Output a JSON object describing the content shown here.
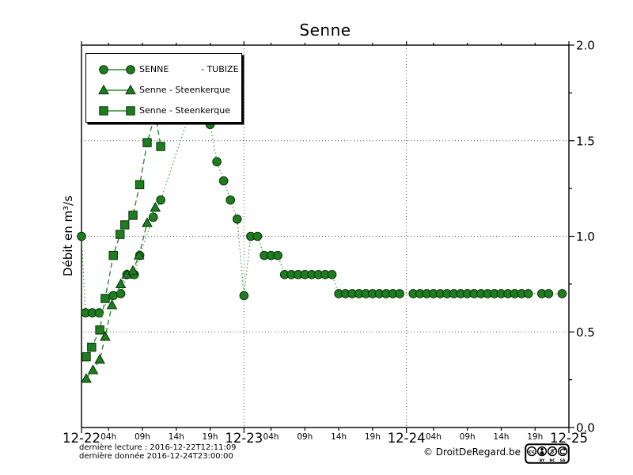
{
  "title": "Senne",
  "y_axis": {
    "label": "Débit en m³/s",
    "ticks": [
      "0.0",
      "0.5",
      "1.0",
      "1.5",
      "2.0"
    ],
    "min": 0.0,
    "max": 2.0,
    "side": "right"
  },
  "x_axis": {
    "day_labels": [
      "12-22",
      "12-23",
      "12-24",
      "12-25"
    ],
    "hour_labels": [
      "04h",
      "09h",
      "14h",
      "19h"
    ],
    "hour_offsets": [
      4,
      9,
      14,
      19
    ],
    "hours_span": 72
  },
  "legend": {
    "items": [
      {
        "marker": "circle",
        "label": "SENNE",
        "label2": "- TUBIZE"
      },
      {
        "marker": "triangle",
        "label": "Senne - Steenkerque",
        "label2": ""
      },
      {
        "marker": "square",
        "label": "Senne - Steenkerque",
        "label2": ""
      }
    ]
  },
  "footnotes": {
    "line1": "dernière lecture : 2016-12-22T12:11:09",
    "line2": "dernière donnée  2016-12-24T23:00:00"
  },
  "copyright": "© DroitDeRegard.be",
  "license_badge": {
    "logo": "cc",
    "labels": [
      "BY",
      "NC",
      "SA"
    ]
  },
  "colors": {
    "marker_fill": "#1e7d1e",
    "marker_edge": "#0a2f0a",
    "dashed_line": "#2e8b2e",
    "dotted_line": "#43a043",
    "grid": "#555555",
    "axis": "#000000"
  },
  "chart_data": {
    "type": "line",
    "title": "Senne",
    "xlabel": "",
    "ylabel": "Débit en m³/s",
    "ylim": [
      0.0,
      2.0
    ],
    "x_unit": "hours since 2016-12-22T00:00",
    "x_tick_days": [
      "12-22",
      "12-23",
      "12-24",
      "12-25"
    ],
    "grid": "dotted, y at 0.5/1.0/1.5 and x at day boundaries",
    "legend_position": "upper left",
    "series": [
      {
        "name": "SENNE - TUBIZE",
        "marker": "circle",
        "linestyle": "dotted",
        "points": [
          [
            0,
            1.0
          ],
          [
            0.6,
            0.6
          ],
          [
            1.6,
            0.6
          ],
          [
            2.6,
            0.6
          ],
          [
            4.7,
            0.69
          ],
          [
            5.8,
            0.7
          ],
          [
            6.7,
            0.8
          ],
          [
            7.8,
            0.8
          ],
          [
            8.6,
            0.9
          ],
          [
            10.6,
            1.1
          ],
          [
            11.7,
            1.19
          ],
          [
            17,
            1.75
          ],
          [
            19,
            1.585
          ],
          [
            20,
            1.39
          ],
          [
            21,
            1.29
          ],
          [
            22,
            1.19
          ],
          [
            23,
            1.09
          ],
          [
            24,
            0.69
          ],
          [
            25,
            1.0
          ],
          [
            26,
            1.0
          ],
          [
            27,
            0.9
          ],
          [
            28,
            0.9
          ],
          [
            29,
            0.9
          ],
          [
            30,
            0.8
          ],
          [
            31,
            0.8
          ],
          [
            32,
            0.8
          ],
          [
            33,
            0.8
          ],
          [
            34,
            0.8
          ],
          [
            35,
            0.8
          ],
          [
            36,
            0.8
          ],
          [
            37,
            0.8
          ],
          [
            38,
            0.7
          ],
          [
            39,
            0.7
          ],
          [
            40,
            0.7
          ],
          [
            41,
            0.7
          ],
          [
            42,
            0.7
          ],
          [
            43,
            0.7
          ],
          [
            44,
            0.7
          ],
          [
            45,
            0.7
          ],
          [
            46,
            0.7
          ],
          [
            47,
            0.7
          ],
          [
            49,
            0.7
          ],
          [
            50,
            0.7
          ],
          [
            51,
            0.7
          ],
          [
            52,
            0.7
          ],
          [
            53,
            0.7
          ],
          [
            54,
            0.7
          ],
          [
            55,
            0.7
          ],
          [
            56,
            0.7
          ],
          [
            57,
            0.7
          ],
          [
            58,
            0.7
          ],
          [
            59,
            0.7
          ],
          [
            60,
            0.7
          ],
          [
            61,
            0.7
          ],
          [
            62,
            0.7
          ],
          [
            63,
            0.7
          ],
          [
            64,
            0.7
          ],
          [
            65,
            0.7
          ],
          [
            66,
            0.7
          ],
          [
            68,
            0.7
          ],
          [
            69,
            0.7
          ],
          [
            71,
            0.7
          ]
        ]
      },
      {
        "name": "Senne - Steenkerque",
        "marker": "triangle",
        "linestyle": "dashed",
        "points": [
          [
            0.7,
            0.255
          ],
          [
            1.7,
            0.3
          ],
          [
            2.7,
            0.355
          ],
          [
            3.5,
            0.475
          ],
          [
            4.5,
            0.64
          ],
          [
            5.8,
            0.75
          ],
          [
            6.7,
            0.8
          ],
          [
            7.6,
            0.82
          ],
          [
            8.5,
            0.9
          ],
          [
            9.7,
            1.07
          ],
          [
            10.9,
            1.15
          ]
        ]
      },
      {
        "name": "Senne - Steenkerque",
        "marker": "square",
        "linestyle": "dashed",
        "points": [
          [
            0.7,
            0.37
          ],
          [
            1.5,
            0.42
          ],
          [
            2.7,
            0.51
          ],
          [
            3.5,
            0.675
          ],
          [
            4.7,
            0.9
          ],
          [
            5.7,
            1.01
          ],
          [
            6.4,
            1.06
          ],
          [
            7.6,
            1.11
          ],
          [
            8.6,
            1.27
          ],
          [
            9.7,
            1.49
          ],
          [
            10.9,
            1.64
          ],
          [
            11.7,
            1.47
          ]
        ]
      }
    ]
  }
}
